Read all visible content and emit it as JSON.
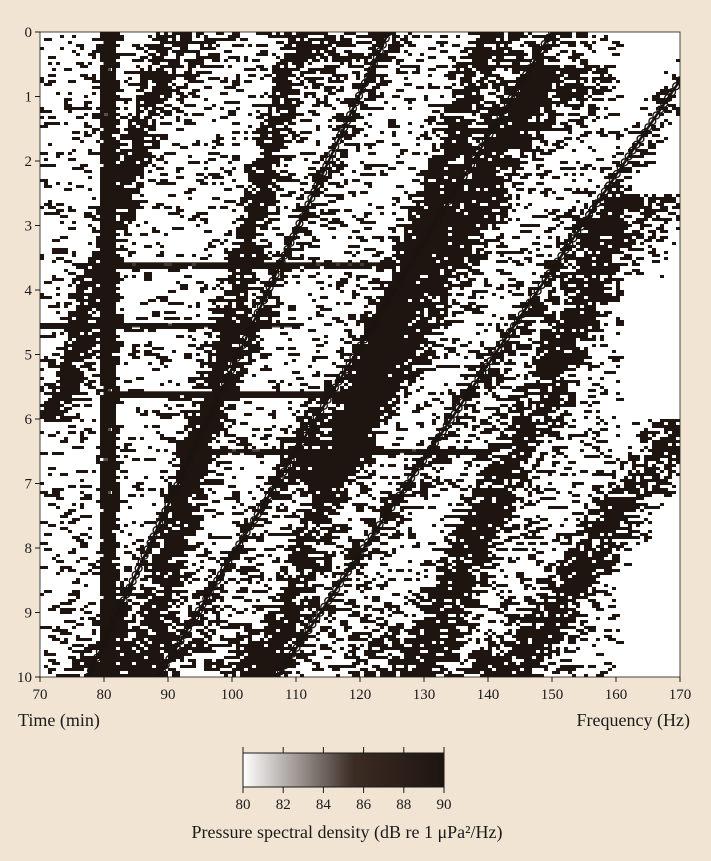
{
  "chart_data": {
    "type": "heatmap",
    "title": "",
    "xlabel": "Frequency (Hz)",
    "ylabel": "Time (min)",
    "xlim": [
      70,
      170
    ],
    "ylim": [
      0,
      10
    ],
    "y_inverted": true,
    "x_ticks": [
      "70",
      "80",
      "90",
      "100",
      "110",
      "120",
      "130",
      "140",
      "150",
      "160",
      "170"
    ],
    "y_ticks": [
      "0",
      "1",
      "2",
      "3",
      "4",
      "5",
      "6",
      "7",
      "8",
      "9",
      "10"
    ],
    "colorbar": {
      "label": "Pressure spectral density (dB re 1 μPa²/Hz)",
      "range": [
        80,
        90
      ],
      "ticks": [
        "80",
        "82",
        "84",
        "86",
        "88",
        "90"
      ],
      "colors": [
        "#ffffff",
        "#1f1510"
      ]
    },
    "colors": {
      "dark": "#1f1510",
      "background": "#ffffff",
      "page": "#f2e4d3"
    },
    "overlay_lines": [
      {
        "name": "",
        "points": [
          [
            77.5,
            10
          ],
          [
            124.5,
            0
          ]
        ]
      },
      {
        "name": "",
        "points": [
          [
            88.5,
            10
          ],
          [
            150,
            0
          ]
        ]
      },
      {
        "name": "",
        "points": [
          [
            107,
            10
          ],
          [
            170,
            0.75
          ]
        ]
      }
    ],
    "striations": [
      {
        "x_start": 86,
        "x_end": 110,
        "y_start": 10,
        "y_end": 0,
        "width": 6
      },
      {
        "x_start": 104,
        "x_end": 140,
        "y_start": 10,
        "y_end": 0,
        "width": 5
      },
      {
        "x_start": 128,
        "x_end": 162,
        "y_start": 10,
        "y_end": 2.5,
        "width": 6
      },
      {
        "x_start": 143,
        "x_end": 170,
        "y_start": 10,
        "y_end": 6,
        "width": 5
      },
      {
        "x_start": 72,
        "x_end": 90,
        "y_start": 6,
        "y_end": 0,
        "width": 5
      },
      {
        "x_start": 115,
        "x_end": 150,
        "y_start": 7,
        "y_end": 0.5,
        "width": 5
      }
    ],
    "vertical_bands": [
      {
        "x": 80.5,
        "width": 1.2
      }
    ],
    "horizontal_bands": [
      {
        "y": 3.6,
        "x_range": [
          80,
          125
        ]
      },
      {
        "y": 4.55,
        "x_range": [
          70,
          110
        ]
      },
      {
        "y": 5.6,
        "x_range": [
          80,
          125
        ]
      },
      {
        "y": 6.5,
        "x_range": [
          96,
          140
        ]
      }
    ]
  }
}
